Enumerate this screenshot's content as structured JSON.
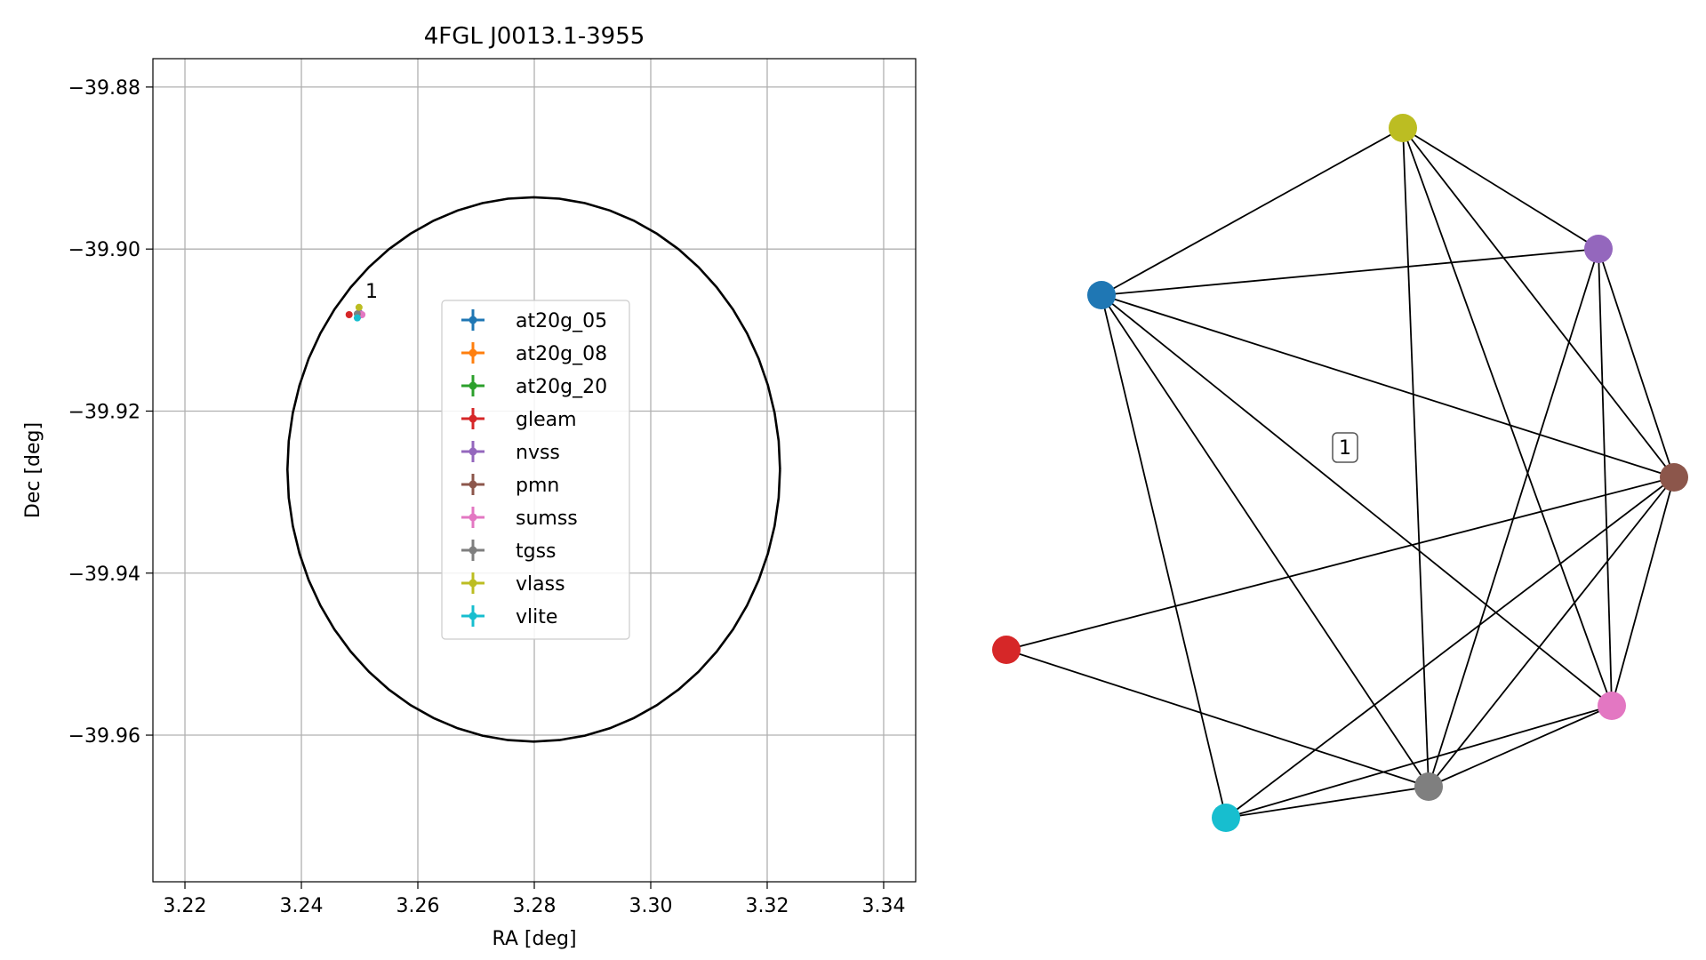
{
  "figure": {
    "panels": [
      "sky-plot",
      "association-graph"
    ]
  },
  "chart_data": [
    {
      "type": "scatter",
      "title": "4FGL J0013.1-3955",
      "xlabel": "RA [deg]",
      "ylabel": "Dec [deg]",
      "xlim": [
        3.2145,
        3.3455
      ],
      "ylim": [
        -39.9781,
        -39.8765
      ],
      "xticks": [
        3.22,
        3.24,
        3.26,
        3.28,
        3.3,
        3.32,
        3.34
      ],
      "xtick_labels": [
        "3.22",
        "3.24",
        "3.26",
        "3.28",
        "3.30",
        "3.32",
        "3.34"
      ],
      "yticks": [
        -39.88,
        -39.9,
        -39.92,
        -39.94,
        -39.96
      ],
      "ytick_labels": [
        "−39.88",
        "−39.90",
        "−39.92",
        "−39.94",
        "−39.96"
      ],
      "grid": true,
      "legend_position": "center",
      "error_ellipse": {
        "center": [
          3.2799,
          -39.9272
        ],
        "semi_axis_ra": 0.0423,
        "semi_axis_dec": 0.0336,
        "color": "#000000"
      },
      "cluster_label": {
        "text": "1",
        "x": 3.251,
        "y": -39.906
      },
      "series": [
        {
          "name": "at20g_05",
          "color": "#1f77b4",
          "x": 3.2497,
          "y": -39.908
        },
        {
          "name": "at20g_08",
          "color": "#ff7f0e",
          "x": 3.2497,
          "y": -39.908
        },
        {
          "name": "at20g_20",
          "color": "#2ca02c",
          "x": 3.2497,
          "y": -39.908
        },
        {
          "name": "gleam",
          "color": "#d62728",
          "x": 3.2482,
          "y": -39.9081
        },
        {
          "name": "nvss",
          "color": "#9467bd",
          "x": 3.25,
          "y": -39.9079
        },
        {
          "name": "pmn",
          "color": "#8c564b",
          "x": 3.2499,
          "y": -39.9082
        },
        {
          "name": "sumss",
          "color": "#e377c2",
          "x": 3.2504,
          "y": -39.9081
        },
        {
          "name": "tgss",
          "color": "#7f7f7f",
          "x": 3.2496,
          "y": -39.908
        },
        {
          "name": "vlass",
          "color": "#bcbd22",
          "x": 3.2499,
          "y": -39.9072
        },
        {
          "name": "vlite",
          "color": "#17becf",
          "x": 3.2496,
          "y": -39.9085
        }
      ]
    },
    {
      "type": "network",
      "cluster_label": "1",
      "nodes": [
        {
          "id": "at20g",
          "color": "#1f77b4"
        },
        {
          "id": "vlass",
          "color": "#bcbd22"
        },
        {
          "id": "nvss",
          "color": "#9467bd"
        },
        {
          "id": "pmn",
          "color": "#8c564b"
        },
        {
          "id": "sumss",
          "color": "#e377c2"
        },
        {
          "id": "tgss",
          "color": "#7f7f7f"
        },
        {
          "id": "vlite",
          "color": "#17becf"
        },
        {
          "id": "gleam",
          "color": "#d62728"
        }
      ],
      "edges": [
        [
          "at20g",
          "vlass"
        ],
        [
          "at20g",
          "nvss"
        ],
        [
          "at20g",
          "pmn"
        ],
        [
          "at20g",
          "sumss"
        ],
        [
          "at20g",
          "tgss"
        ],
        [
          "at20g",
          "vlite"
        ],
        [
          "vlass",
          "nvss"
        ],
        [
          "vlass",
          "pmn"
        ],
        [
          "vlass",
          "sumss"
        ],
        [
          "vlass",
          "tgss"
        ],
        [
          "nvss",
          "pmn"
        ],
        [
          "nvss",
          "sumss"
        ],
        [
          "nvss",
          "tgss"
        ],
        [
          "pmn",
          "gleam"
        ],
        [
          "pmn",
          "tgss"
        ],
        [
          "pmn",
          "vlite"
        ],
        [
          "pmn",
          "sumss"
        ],
        [
          "sumss",
          "tgss"
        ],
        [
          "sumss",
          "vlite"
        ],
        [
          "tgss",
          "vlite"
        ],
        [
          "tgss",
          "gleam"
        ]
      ]
    }
  ]
}
